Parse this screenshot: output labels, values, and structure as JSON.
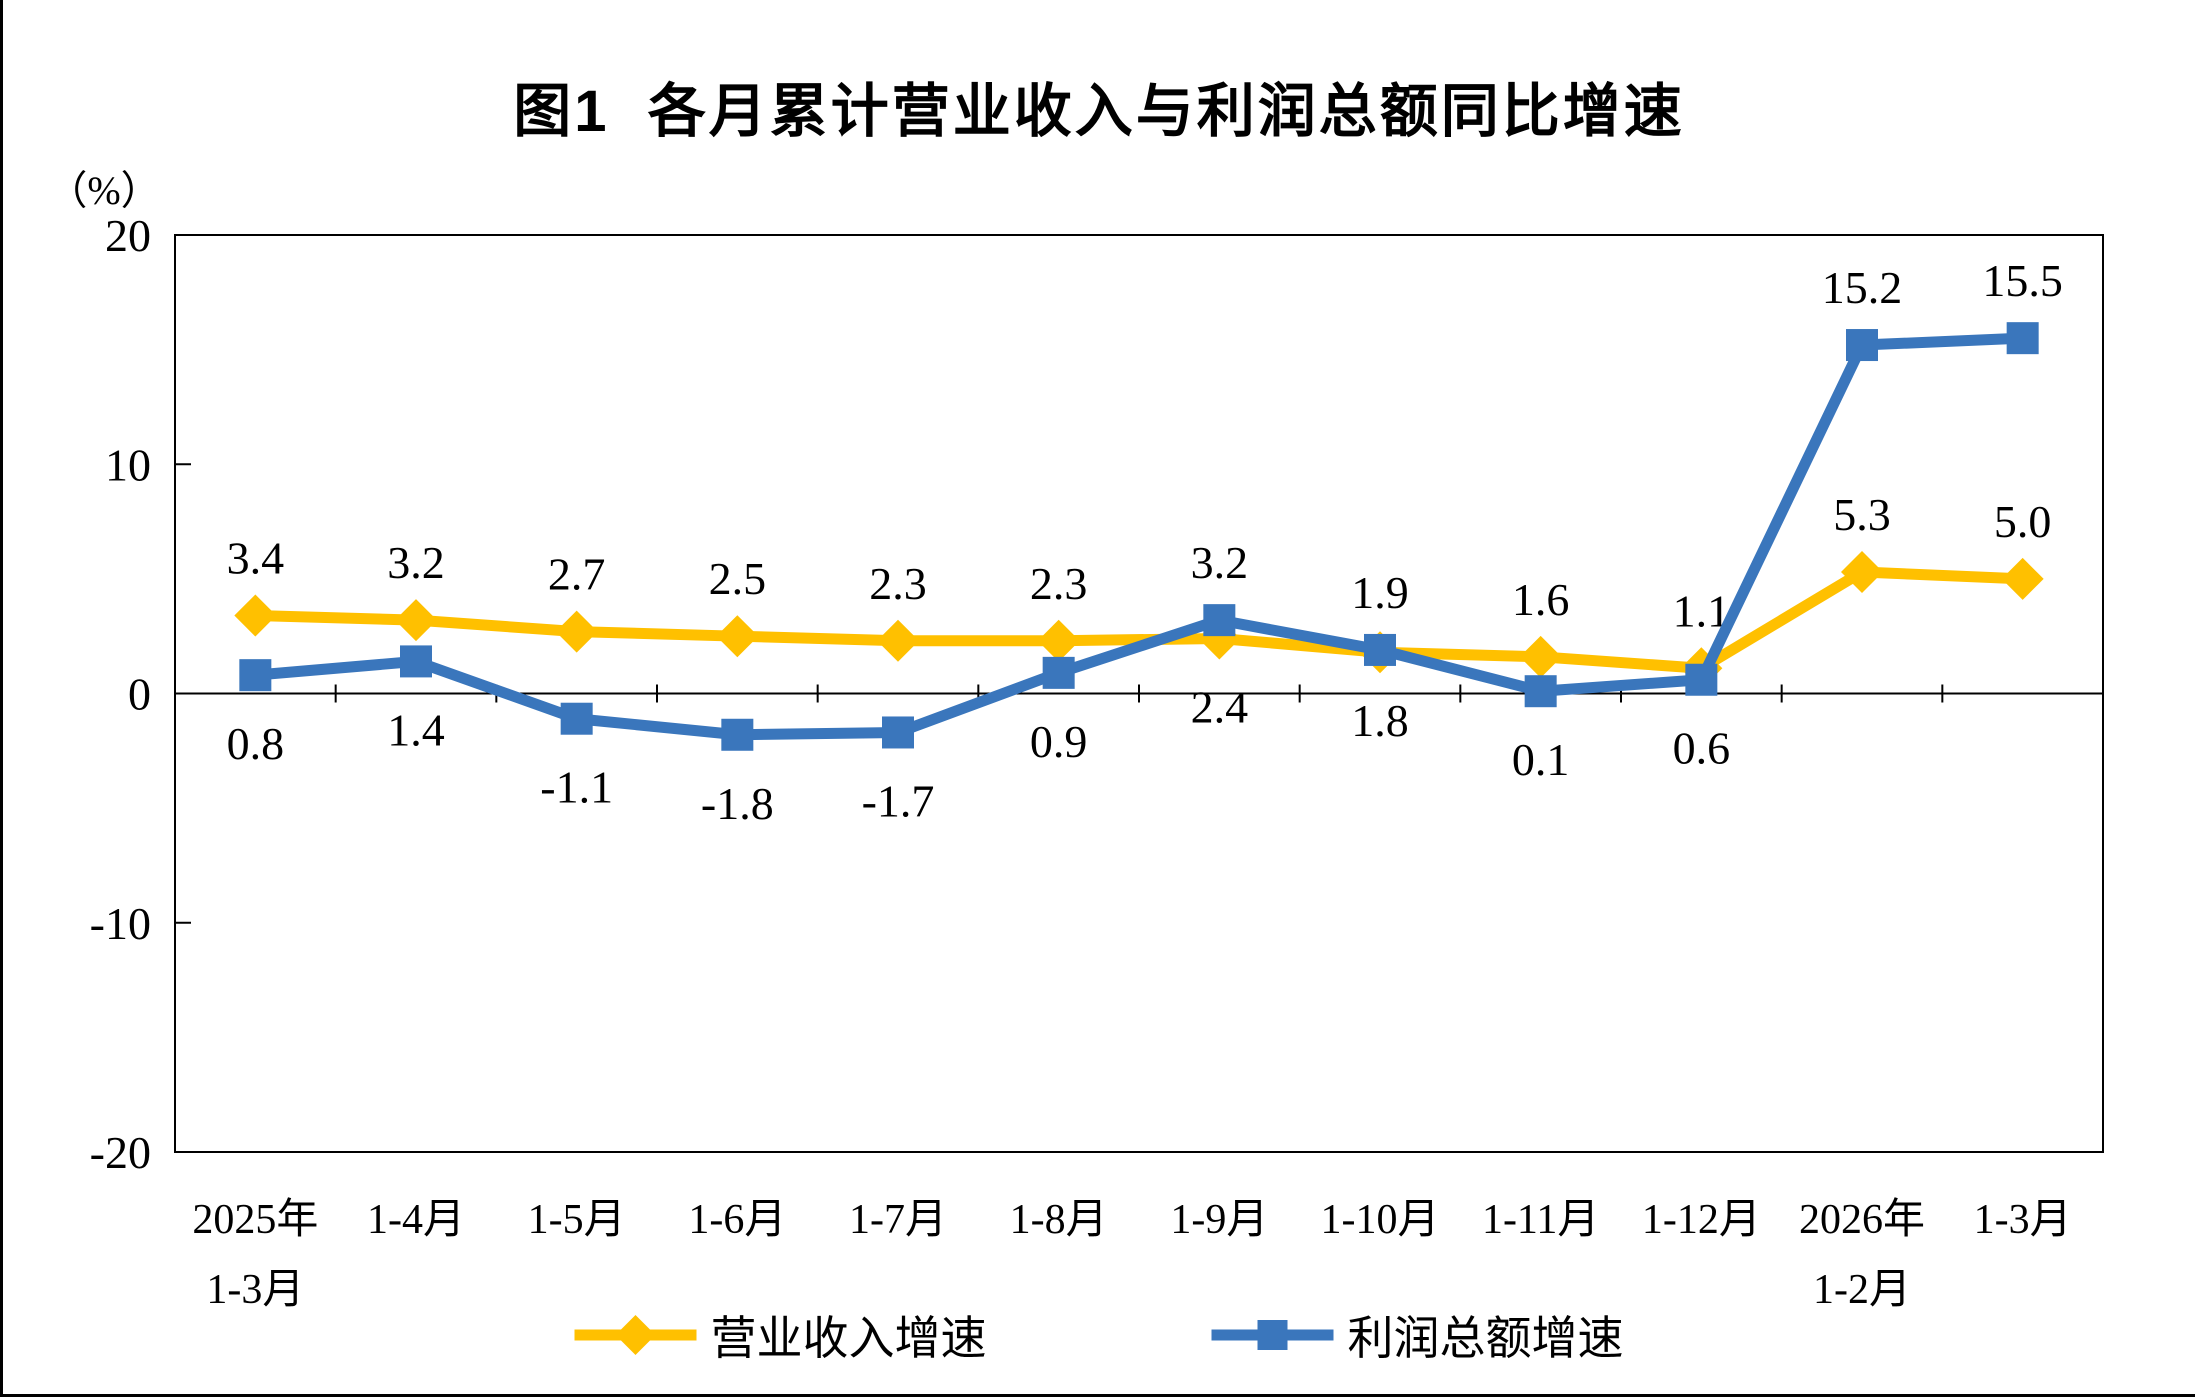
{
  "page": {
    "title": "图1  各月累计营业收入与利润总额同比增速",
    "unit_label": "（%）"
  },
  "chart_data": {
    "type": "line",
    "title": "图1  各月累计营业收入与利润总额同比增速",
    "ylabel": "（%）",
    "grid": "off",
    "legend_position": "bottom",
    "categories": [
      [
        "2025年",
        "1-3月"
      ],
      [
        "1-4月"
      ],
      [
        "1-5月"
      ],
      [
        "1-6月"
      ],
      [
        "1-7月"
      ],
      [
        "1-8月"
      ],
      [
        "1-9月"
      ],
      [
        "1-10月"
      ],
      [
        "1-11月"
      ],
      [
        "1-12月"
      ],
      [
        "2026年",
        "1-2月"
      ],
      [
        "1-3月"
      ]
    ],
    "y_axis": {
      "range": [
        -20,
        20
      ],
      "ticks": [
        20,
        10,
        0,
        -10,
        -20
      ]
    },
    "series": [
      {
        "name": "营业收入增速",
        "color": "#FFC000",
        "marker": "diamond",
        "values": [
          3.4,
          3.2,
          2.7,
          2.5,
          2.3,
          2.3,
          2.4,
          1.8,
          1.6,
          1.1,
          5.3,
          5.0
        ],
        "labels": [
          "3.4",
          "3.2",
          "2.7",
          "2.5",
          "2.3",
          "2.3",
          "2.4",
          "1.8",
          "1.6",
          "1.1",
          "5.3",
          "5.0"
        ],
        "label_side": [
          "above",
          "above",
          "above",
          "above",
          "above",
          "above",
          "below",
          "below",
          "above",
          "above",
          "above",
          "above"
        ]
      },
      {
        "name": "利润总额增速",
        "color": "#3A76BC",
        "marker": "square",
        "values": [
          0.8,
          1.4,
          -1.1,
          -1.8,
          -1.7,
          0.9,
          3.2,
          1.9,
          0.1,
          0.6,
          15.2,
          15.5
        ],
        "labels": [
          "0.8",
          "1.4",
          "-1.1",
          "-1.8",
          "-1.7",
          "0.9",
          "3.2",
          "1.9",
          "0.1",
          "0.6",
          "15.2",
          "15.5"
        ],
        "label_side": [
          "below",
          "below",
          "below",
          "below",
          "below",
          "below",
          "above",
          "above",
          "below",
          "below",
          "above",
          "above"
        ]
      }
    ]
  }
}
